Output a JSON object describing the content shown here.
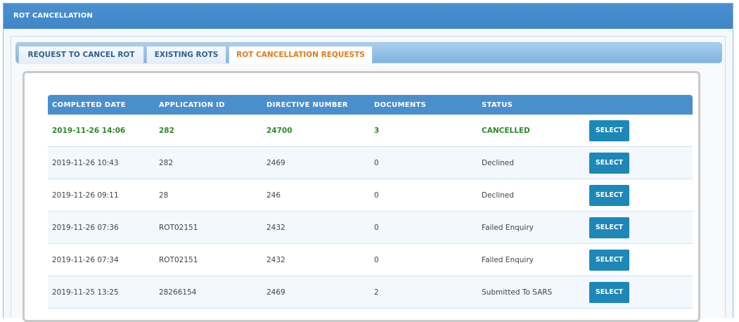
{
  "panel": {
    "title": "ROT CANCELLATION"
  },
  "tabs": [
    {
      "label": "REQUEST TO CANCEL ROT",
      "active": false
    },
    {
      "label": "EXISTING ROTS",
      "active": false
    },
    {
      "label": "ROT CANCELLATION REQUESTS",
      "active": true
    }
  ],
  "table": {
    "headers": [
      "COMPLETED DATE",
      "APPLICATION ID",
      "DIRECTIVE NUMBER",
      "DOCUMENTS",
      "STATUS",
      ""
    ],
    "rows": [
      {
        "completed_date": "2019-11-26 14:06",
        "application_id": "282",
        "directive_number": "24700",
        "documents": "3",
        "status": "CANCELLED",
        "action": "SELECT"
      },
      {
        "completed_date": "2019-11-26 10:43",
        "application_id": "282",
        "directive_number": "2469",
        "documents": "0",
        "status": "Declined",
        "action": "SELECT"
      },
      {
        "completed_date": "2019-11-26 09:11",
        "application_id": "28",
        "directive_number": "246",
        "documents": "0",
        "status": "Declined",
        "action": "SELECT"
      },
      {
        "completed_date": "2019-11-26 07:36",
        "application_id": "ROT02151",
        "directive_number": "2432",
        "documents": "0",
        "status": "Failed Enquiry",
        "action": "SELECT"
      },
      {
        "completed_date": "2019-11-26 07:34",
        "application_id": "ROT02151",
        "directive_number": "2432",
        "documents": "0",
        "status": "Failed Enquiry",
        "action": "SELECT"
      },
      {
        "completed_date": "2019-11-25 13:25",
        "application_id": "28266154",
        "directive_number": "2469",
        "documents": "2",
        "status": "Submitted To SARS",
        "action": "SELECT"
      }
    ]
  },
  "colors": {
    "header_blue": "#4a8fcd",
    "active_tab_text": "#e07b1a",
    "highlight_green": "#2a8a2a",
    "select_button": "#1d87b8"
  }
}
